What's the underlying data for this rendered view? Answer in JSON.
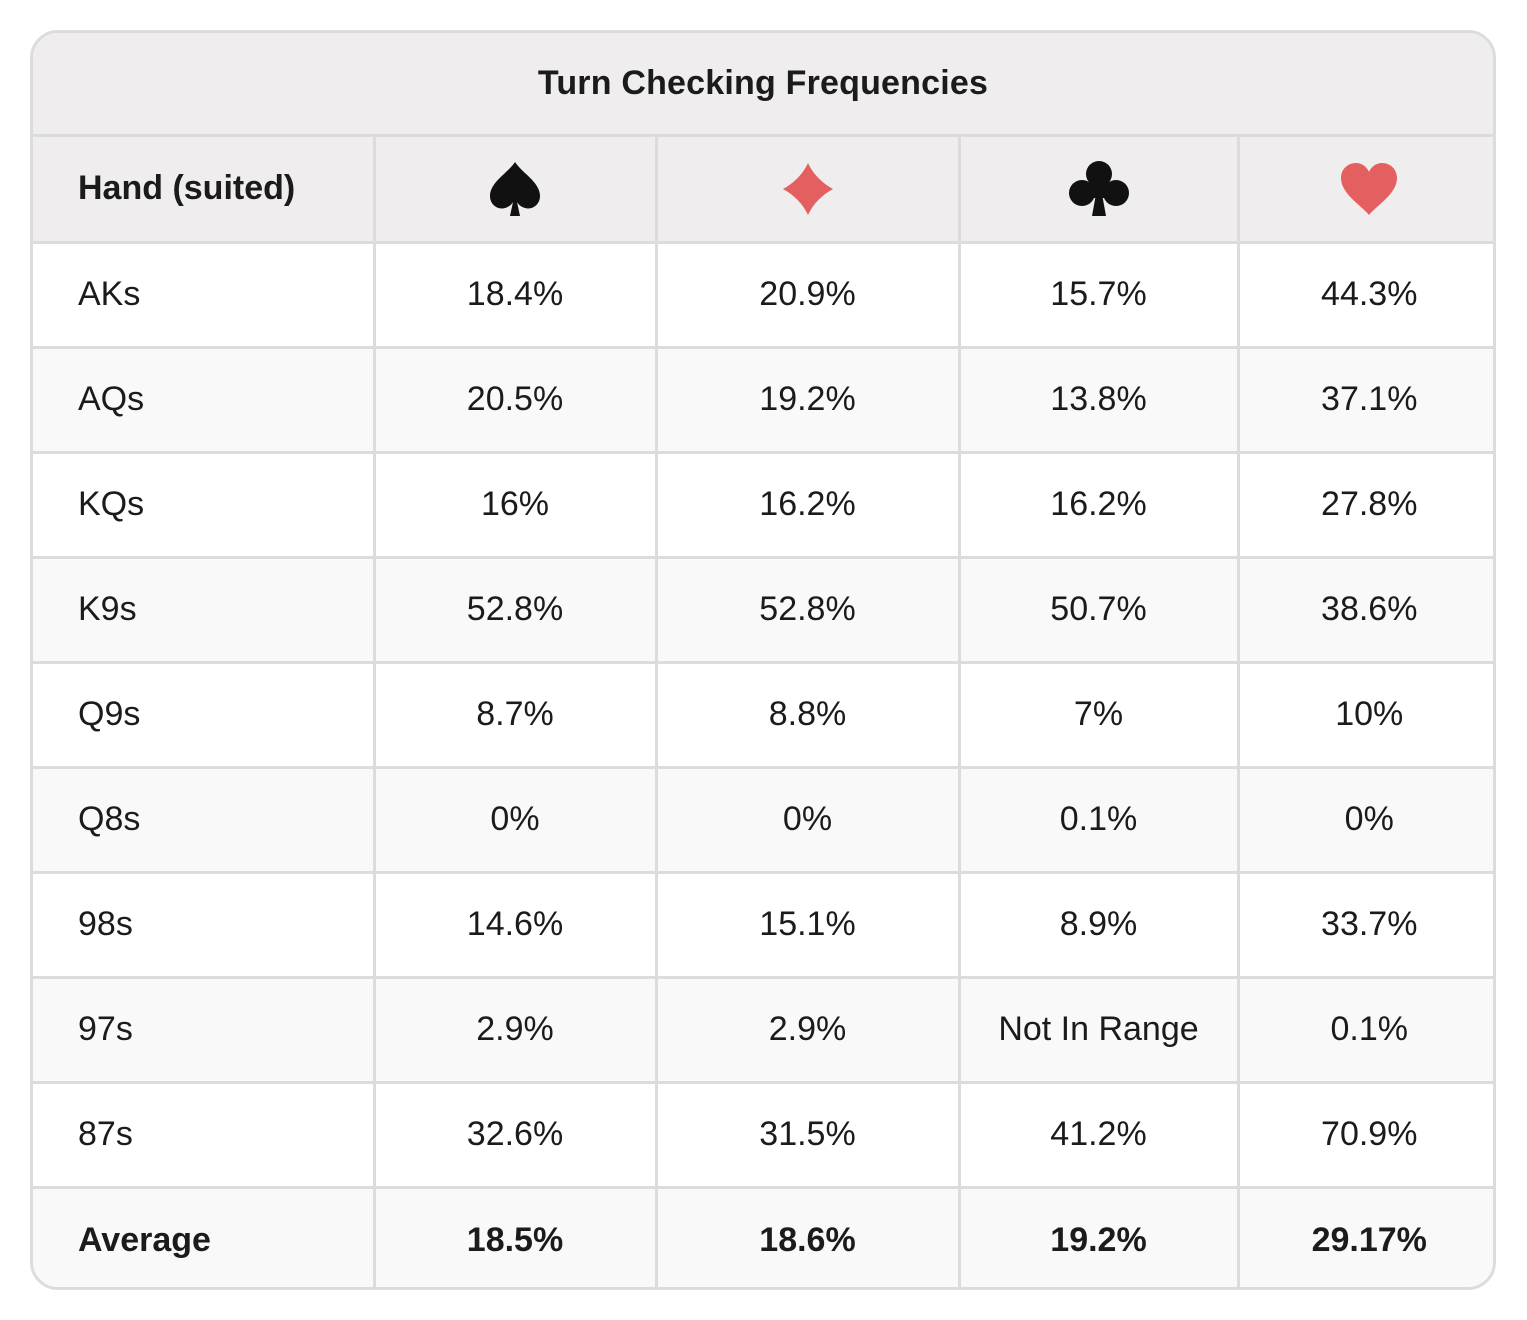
{
  "table": {
    "title": "Turn Checking Frequencies",
    "header": {
      "hand_label": "Hand (suited)",
      "suits": [
        {
          "icon": "spade-icon",
          "color": "#111111"
        },
        {
          "icon": "diamond-icon",
          "color": "#e46060"
        },
        {
          "icon": "club-icon",
          "color": "#111111"
        },
        {
          "icon": "heart-icon",
          "color": "#e46060"
        }
      ]
    },
    "rows": [
      {
        "hand": "AKs",
        "spade": "18.4%",
        "diamond": "20.9%",
        "club": "15.7%",
        "heart": "44.3%"
      },
      {
        "hand": "AQs",
        "spade": "20.5%",
        "diamond": "19.2%",
        "club": "13.8%",
        "heart": "37.1%"
      },
      {
        "hand": "KQs",
        "spade": "16%",
        "diamond": "16.2%",
        "club": "16.2%",
        "heart": "27.8%"
      },
      {
        "hand": "K9s",
        "spade": "52.8%",
        "diamond": "52.8%",
        "club": "50.7%",
        "heart": "38.6%"
      },
      {
        "hand": "Q9s",
        "spade": "8.7%",
        "diamond": "8.8%",
        "club": "7%",
        "heart": "10%"
      },
      {
        "hand": "Q8s",
        "spade": "0%",
        "diamond": "0%",
        "club": "0.1%",
        "heart": "0%"
      },
      {
        "hand": "98s",
        "spade": "14.6%",
        "diamond": "15.1%",
        "club": "8.9%",
        "heart": "33.7%"
      },
      {
        "hand": "97s",
        "spade": "2.9%",
        "diamond": "2.9%",
        "club": "Not In Range",
        "heart": "0.1%"
      },
      {
        "hand": "87s",
        "spade": "32.6%",
        "diamond": "31.5%",
        "club": "41.2%",
        "heart": "70.9%"
      }
    ],
    "average": {
      "hand": "Average",
      "spade": "18.5%",
      "diamond": "18.6%",
      "club": "19.2%",
      "heart": "29.17%"
    }
  }
}
